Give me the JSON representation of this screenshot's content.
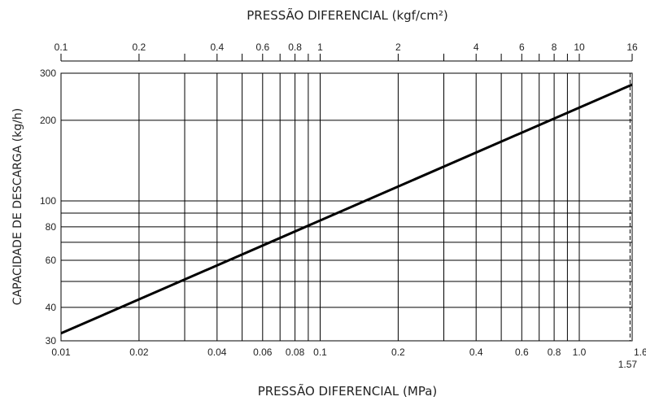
{
  "chart_data": {
    "type": "line",
    "title": "PRESSÃO DIFERENCIAL (kgf/cm²)",
    "xlabel": "PRESSÃO DIFERENCIAL (MPa)",
    "ylabel": "CAPACIDADE DE DESCARGA (kg/h)",
    "x_scale": "log",
    "y_scale": "log",
    "xlim": [
      0.01,
      1.6
    ],
    "ylim": [
      30,
      300
    ],
    "grid": true,
    "x_ticks": [
      0.01,
      0.02,
      0.03,
      0.04,
      0.05,
      0.06,
      0.07,
      0.08,
      0.09,
      0.1,
      0.2,
      0.3,
      0.4,
      0.5,
      0.6,
      0.7,
      0.8,
      0.9,
      1.0
    ],
    "x_tick_labels": [
      {
        "value": 0.01,
        "label": "0.01"
      },
      {
        "value": 0.02,
        "label": "0.02"
      },
      {
        "value": 0.04,
        "label": "0.04"
      },
      {
        "value": 0.06,
        "label": "0.06"
      },
      {
        "value": 0.08,
        "label": "0.08"
      },
      {
        "value": 0.1,
        "label": "0.1"
      },
      {
        "value": 0.2,
        "label": "0.2"
      },
      {
        "value": 0.4,
        "label": "0.4"
      },
      {
        "value": 0.6,
        "label": "0.6"
      },
      {
        "value": 0.8,
        "label": "0.8"
      },
      {
        "value": 1.0,
        "label": "1.0"
      },
      {
        "value": 1.6,
        "label": "1.6"
      }
    ],
    "y_ticks": [
      30,
      40,
      50,
      60,
      70,
      80,
      90,
      100,
      200,
      300
    ],
    "y_tick_labels": [
      {
        "value": 30,
        "label": "30"
      },
      {
        "value": 40,
        "label": "40"
      },
      {
        "value": 60,
        "label": "60"
      },
      {
        "value": 80,
        "label": "80"
      },
      {
        "value": 100,
        "label": "100"
      },
      {
        "value": 200,
        "label": "200"
      },
      {
        "value": 300,
        "label": "300"
      }
    ],
    "top_axis": {
      "unit_factor": 0.1,
      "minor_ticks": [
        0.1,
        0.2,
        0.3,
        0.4,
        0.5,
        0.6,
        0.7,
        0.8,
        0.9,
        1,
        2,
        3,
        4,
        5,
        6,
        7,
        8,
        9,
        10,
        16
      ],
      "tick_labels": [
        {
          "value": 0.1,
          "label": "0.1"
        },
        {
          "value": 0.2,
          "label": "0.2"
        },
        {
          "value": 0.4,
          "label": "0.4"
        },
        {
          "value": 0.6,
          "label": "0.6"
        },
        {
          "value": 0.8,
          "label": "0.8"
        },
        {
          "value": 1,
          "label": "1"
        },
        {
          "value": 2,
          "label": "2"
        },
        {
          "value": 4,
          "label": "4"
        },
        {
          "value": 6,
          "label": "6"
        },
        {
          "value": 8,
          "label": "8"
        },
        {
          "value": 10,
          "label": "10"
        },
        {
          "value": 16,
          "label": "16"
        }
      ]
    },
    "marker": {
      "x": 1.57,
      "label": "1.57",
      "style": "dashed"
    },
    "series": [
      {
        "x": [
          0.01,
          1.6
        ],
        "y": [
          32,
          272
        ],
        "color": "#000000"
      }
    ]
  }
}
